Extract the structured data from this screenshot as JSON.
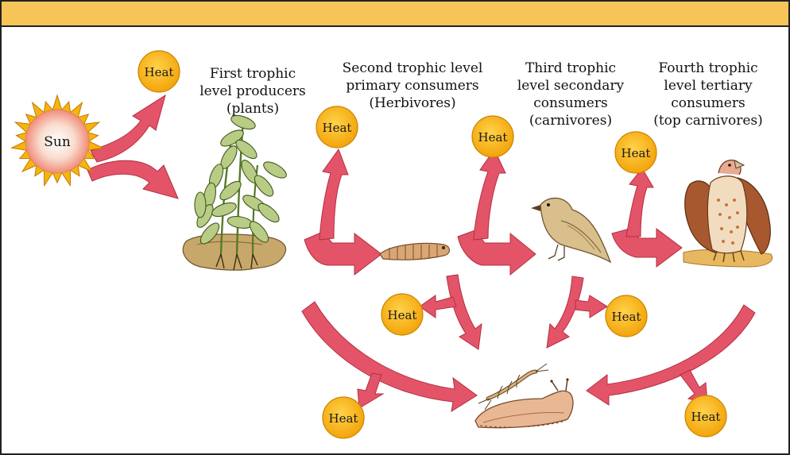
{
  "colors": {
    "banner": "#f7c458",
    "arrow": "#e45468",
    "arrow_stroke": "#b42e40",
    "heat_fill": "#f9b512",
    "heat_stroke": "#c98400",
    "sun_rays": "#f6b40e",
    "sun_core": "#f6c9b8"
  },
  "sun": {
    "label": "Sun"
  },
  "heat_label": "Heat",
  "levels": {
    "first": [
      "First trophic",
      "level producers",
      "(plants)"
    ],
    "second": [
      "Second trophic level",
      "primary consumers",
      "(Herbivores)"
    ],
    "third": [
      "Third trophic",
      "level  secondary",
      "consumers",
      "(carnivores)"
    ],
    "fourth": [
      "Fourth trophic",
      "level tertiary",
      "consumers",
      "(top carnivores)"
    ]
  },
  "icons": {
    "producer": "plant-icon",
    "herbivore": "caterpillar-icon",
    "carnivore": "sparrow-icon",
    "top_carnivore": "vulture-icon",
    "decomposers": "decomposers-icon"
  }
}
